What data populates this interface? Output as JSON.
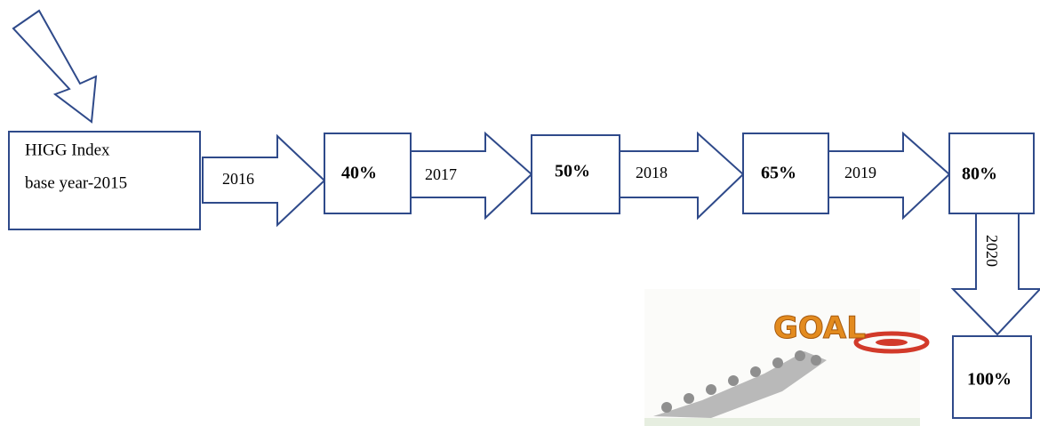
{
  "start": {
    "lines": [
      "HIGG Index",
      "base year-2015"
    ]
  },
  "nodes": [
    {
      "label": "40%"
    },
    {
      "label": "50%"
    },
    {
      "label": "65%"
    },
    {
      "label": "80%"
    },
    {
      "label": "100%"
    }
  ],
  "arrows": [
    {
      "label": "2016"
    },
    {
      "label": "2017"
    },
    {
      "label": "2018"
    },
    {
      "label": "2019"
    },
    {
      "label": "2020"
    }
  ],
  "image": {
    "text": "GOAL"
  }
}
